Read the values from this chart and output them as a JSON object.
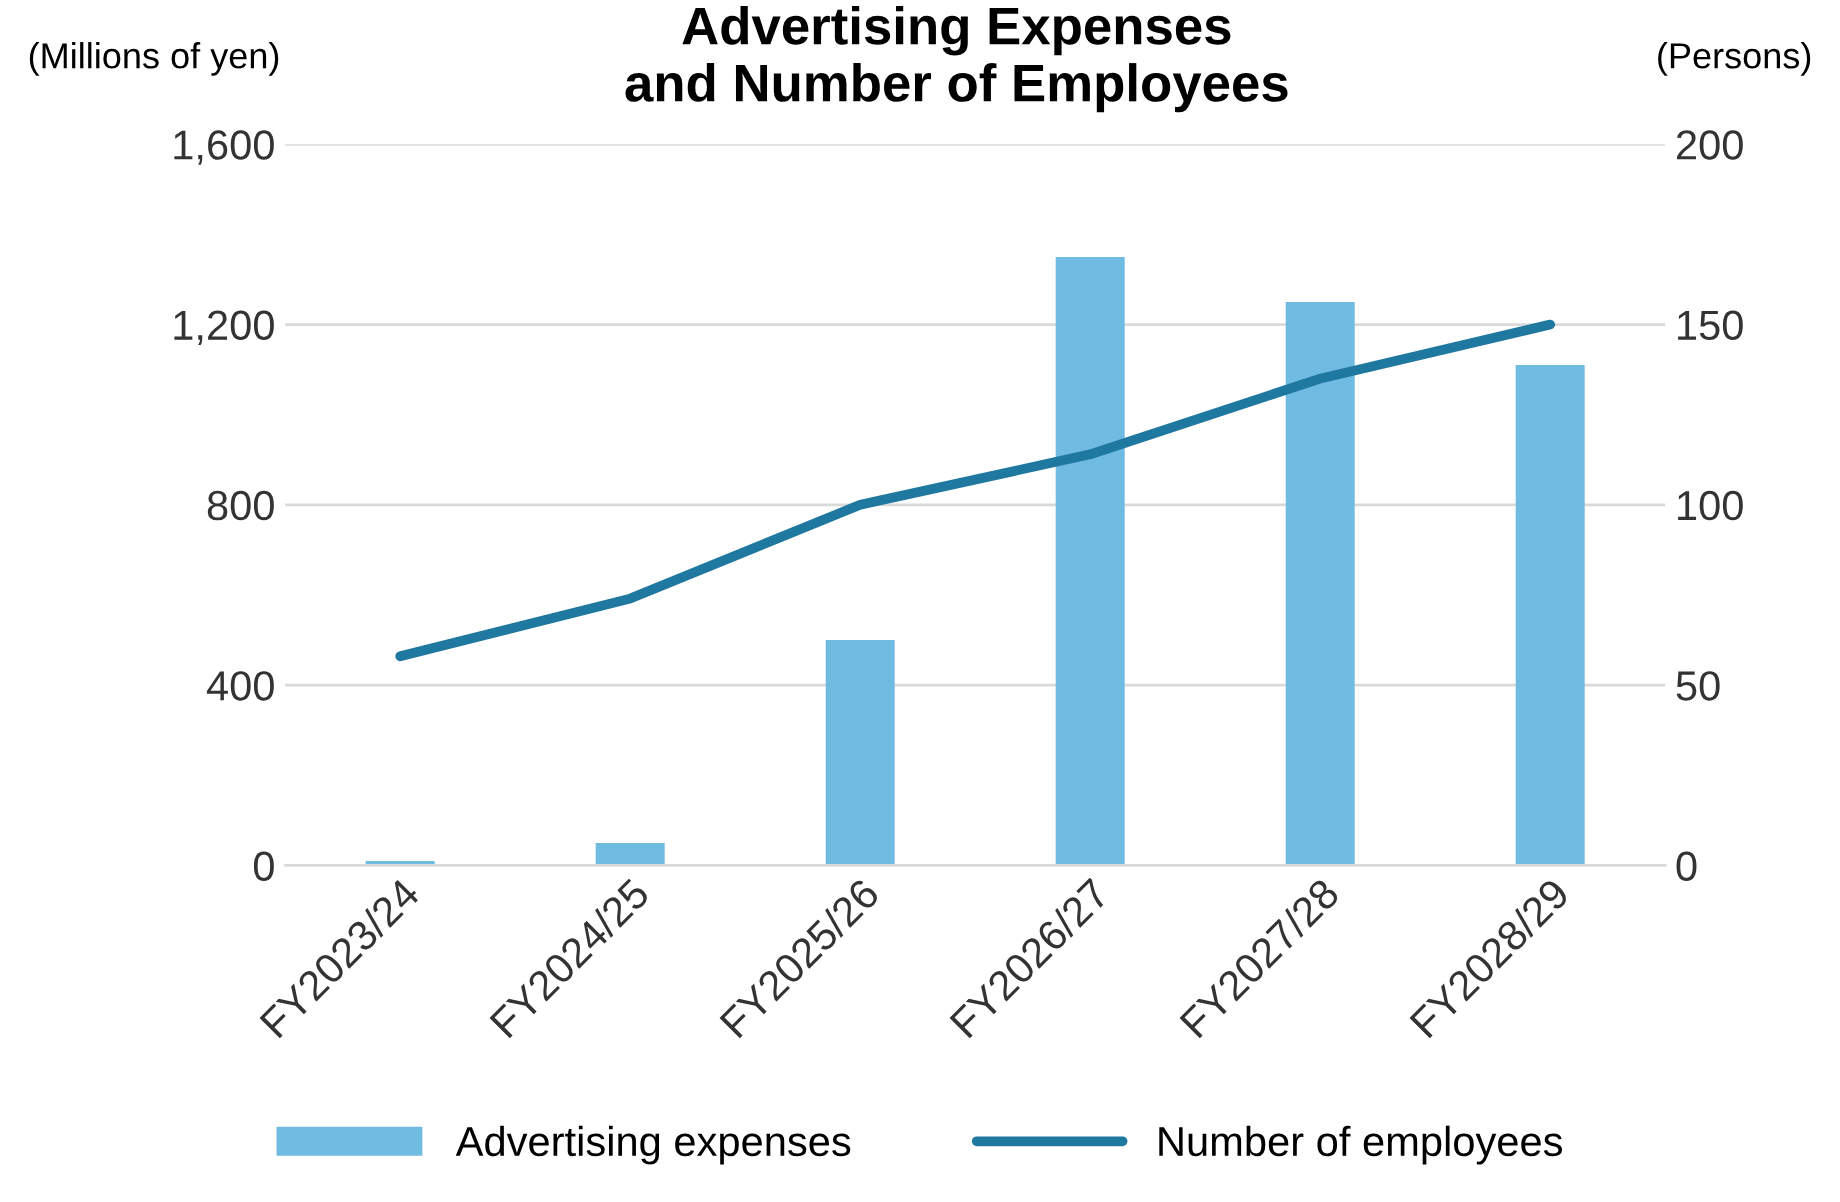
{
  "chart_data": {
    "type": "bar",
    "title": "Advertising Expenses\nand Number of Employees",
    "ylabel": "(Millions of yen)",
    "y2label": "(Persons)",
    "categories": [
      "FY2023/24",
      "FY2024/25",
      "FY2025/26",
      "FY2026/27",
      "FY2027/28",
      "FY2028/29"
    ],
    "series": [
      {
        "name": "Advertising expenses",
        "color": "#70bbe2",
        "values": [
          10,
          50,
          500,
          1350,
          1250,
          1110
        ]
      },
      {
        "name": "Number of employees",
        "type": "line",
        "axis": "y2",
        "color": "#1f78a0",
        "values": [
          58,
          74,
          100,
          114,
          135,
          150
        ]
      }
    ],
    "ylim": [
      0,
      1600
    ],
    "yticks": [
      0,
      {
        "value": 400,
        "label": "400"
      },
      {
        "value": 800,
        "label": "800"
      },
      {
        "value": 1200,
        "label": "1,200"
      },
      {
        "value": 1600,
        "label": "1,600"
      }
    ],
    "y2lim": [
      0,
      200
    ],
    "y2ticks": [
      0,
      50,
      100,
      150,
      200
    ],
    "grid": "y",
    "legend": "bottom",
    "marker": "none",
    "line_style": "solid"
  }
}
